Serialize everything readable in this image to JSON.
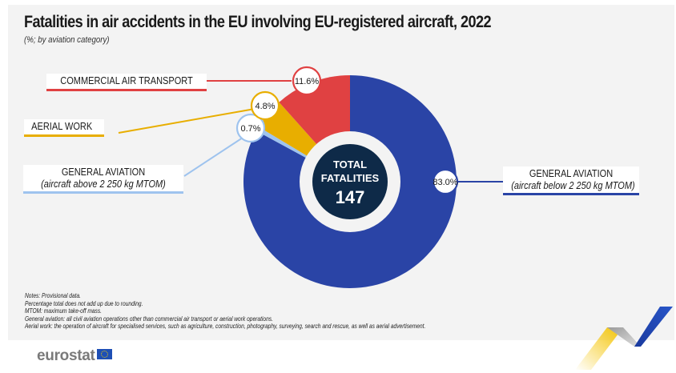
{
  "header": {
    "title": "Fatalities in air accidents in the EU involving EU-registered aircraft, 2022",
    "subtitle": "(%; by aviation category)"
  },
  "chart_data": {
    "type": "pie",
    "variant": "donut",
    "title": "Fatalities in air accidents in the EU involving EU-registered aircraft, 2022",
    "subtitle": "(%; by aviation category)",
    "unit": "%",
    "center_label": {
      "line1": "TOTAL",
      "line2": "FATALITIES",
      "value": "147"
    },
    "slices": [
      {
        "name": "General aviation (aircraft below 2 250 kg MTOM)",
        "label_main": "GENERAL AVIATION",
        "label_sub": "(aircraft below 2 250 kg MTOM)",
        "value": 83.0,
        "display": "83.0%",
        "color": "#2a44a6"
      },
      {
        "name": "General aviation (aircraft above 2 250 kg MTOM)",
        "label_main": "GENERAL AVIATION",
        "label_sub": "(aircraft above 2 250 kg MTOM)",
        "value": 0.7,
        "display": "0.7%",
        "color": "#9ec3ee"
      },
      {
        "name": "Aerial work",
        "label_main": "AERIAL WORK",
        "label_sub": "",
        "value": 4.8,
        "display": "4.8%",
        "color": "#e8ae00"
      },
      {
        "name": "Commercial air transport",
        "label_main": "COMMERCIAL AIR TRANSPORT",
        "label_sub": "",
        "value": 11.6,
        "display": "11.6%",
        "color": "#e04142"
      }
    ],
    "center_color": "#0e2a48"
  },
  "notes": [
    "Notes: Provisional data.",
    "Percentage total does not add up due to rounding.",
    "MTOM: maximum take-off mass.",
    "General aviation: all civil aviation operations other than commercial air transport or aerial work operations.",
    "Aerial work: the operation of aircraft for specialised services, such as agriculture, construction, photography, surveying, search and rescue, as well as aerial advertisement."
  ],
  "footer": {
    "logo_text": "eurostat"
  }
}
